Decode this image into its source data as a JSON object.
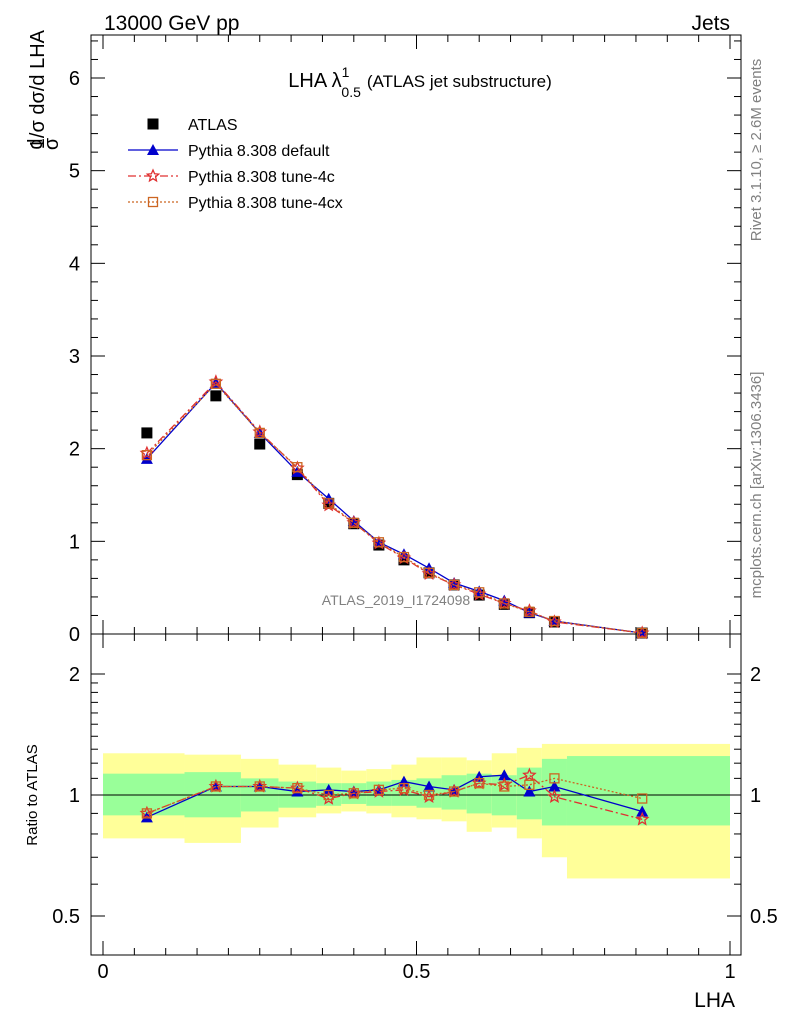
{
  "header": {
    "left": "13000 GeV pp",
    "right": "Jets"
  },
  "side": {
    "rivet": "Rivet 3.1.10, ≥ 2.6M events",
    "mcplots": "mcplots.cern.ch [arXiv:1306.3436]"
  },
  "watermark": "ATLAS_2019_I1724098",
  "chart_data": [
    {
      "type": "scatter",
      "title": "LHA λ¹₀.₅ (ATLAS jet substructure)",
      "title_main": "LHA λ",
      "title_sup": "1",
      "title_sub": "0.5",
      "title_rest": "(ATLAS jet substructure)",
      "ylabel": "1/σ dσ/d LHA",
      "xlim": [
        0,
        1
      ],
      "ylim": [
        0,
        6.5
      ],
      "yticks": [
        "0",
        "1",
        "2",
        "3",
        "4",
        "5",
        "6"
      ],
      "legend": {
        "placement": "top-left",
        "entries": [
          "ATLAS",
          "Pythia 8.308 default",
          "Pythia 8.308 tune-4c",
          "Pythia 8.308 tune-4cx"
        ]
      },
      "x": [
        0.07,
        0.18,
        0.25,
        0.31,
        0.36,
        0.4,
        0.44,
        0.48,
        0.52,
        0.56,
        0.6,
        0.64,
        0.68,
        0.72,
        0.86
      ],
      "series": [
        {
          "name": "ATLAS",
          "color": "#000000",
          "marker": "square",
          "values": [
            2.17,
            2.57,
            2.05,
            1.72,
            1.41,
            1.19,
            0.96,
            0.8,
            0.66,
            0.53,
            0.42,
            0.32,
            0.23,
            0.13,
            0.01
          ]
        },
        {
          "name": "Pythia 8.308 default",
          "color": "#0000cc",
          "marker": "triangle",
          "values": [
            1.89,
            2.71,
            2.17,
            1.75,
            1.46,
            1.22,
            0.99,
            0.86,
            0.71,
            0.55,
            0.46,
            0.36,
            0.23,
            0.14,
            0.01
          ]
        },
        {
          "name": "Pythia 8.308 tune-4c",
          "color": "#e03030",
          "marker": "star",
          "values": [
            1.95,
            2.72,
            2.18,
            1.79,
            1.39,
            1.2,
            0.98,
            0.82,
            0.65,
            0.53,
            0.43,
            0.33,
            0.25,
            0.13,
            0.01
          ]
        },
        {
          "name": "Pythia 8.308 tune-4cx",
          "color": "#cc6622",
          "marker": "open-square",
          "values": [
            1.93,
            2.7,
            2.17,
            1.8,
            1.41,
            1.2,
            0.99,
            0.83,
            0.66,
            0.53,
            0.45,
            0.33,
            0.24,
            0.14,
            0.01
          ]
        }
      ]
    },
    {
      "type": "scatter",
      "ylabel": "Ratio to ATLAS",
      "xlabel": "LHA",
      "xlim": [
        0,
        1
      ],
      "ylim": [
        0.4,
        2.3
      ],
      "log_y": true,
      "xticks": [
        "0",
        "0.5",
        "1"
      ],
      "yticks": [
        "0.5",
        "1",
        "2"
      ],
      "x": [
        0.07,
        0.18,
        0.25,
        0.31,
        0.36,
        0.4,
        0.44,
        0.48,
        0.52,
        0.56,
        0.6,
        0.64,
        0.68,
        0.72,
        0.86
      ],
      "bins": [
        {
          "lo": 0.0,
          "hi": 0.13,
          "in": [
            0.89,
            1.13
          ],
          "out": [
            0.78,
            1.27
          ]
        },
        {
          "lo": 0.13,
          "hi": 0.22,
          "in": [
            0.88,
            1.14
          ],
          "out": [
            0.76,
            1.26
          ]
        },
        {
          "lo": 0.22,
          "hi": 0.28,
          "in": [
            0.91,
            1.1
          ],
          "out": [
            0.83,
            1.23
          ]
        },
        {
          "lo": 0.28,
          "hi": 0.34,
          "in": [
            0.93,
            1.08
          ],
          "out": [
            0.88,
            1.19
          ]
        },
        {
          "lo": 0.34,
          "hi": 0.38,
          "in": [
            0.94,
            1.07
          ],
          "out": [
            0.9,
            1.17
          ]
        },
        {
          "lo": 0.38,
          "hi": 0.42,
          "in": [
            0.95,
            1.07
          ],
          "out": [
            0.91,
            1.15
          ]
        },
        {
          "lo": 0.42,
          "hi": 0.46,
          "in": [
            0.94,
            1.08
          ],
          "out": [
            0.9,
            1.16
          ]
        },
        {
          "lo": 0.46,
          "hi": 0.5,
          "in": [
            0.94,
            1.09
          ],
          "out": [
            0.88,
            1.19
          ]
        },
        {
          "lo": 0.5,
          "hi": 0.54,
          "in": [
            0.93,
            1.1
          ],
          "out": [
            0.87,
            1.24
          ]
        },
        {
          "lo": 0.54,
          "hi": 0.58,
          "in": [
            0.92,
            1.12
          ],
          "out": [
            0.86,
            1.24
          ]
        },
        {
          "lo": 0.58,
          "hi": 0.62,
          "in": [
            0.9,
            1.13
          ],
          "out": [
            0.81,
            1.22
          ]
        },
        {
          "lo": 0.62,
          "hi": 0.66,
          "in": [
            0.89,
            1.12
          ],
          "out": [
            0.83,
            1.27
          ]
        },
        {
          "lo": 0.66,
          "hi": 0.7,
          "in": [
            0.87,
            1.17
          ],
          "out": [
            0.78,
            1.31
          ]
        },
        {
          "lo": 0.7,
          "hi": 0.74,
          "in": [
            0.84,
            1.23
          ],
          "out": [
            0.7,
            1.34
          ]
        },
        {
          "lo": 0.74,
          "hi": 1.0,
          "in": [
            0.84,
            1.25
          ],
          "out": [
            0.62,
            1.34
          ]
        }
      ],
      "series": [
        {
          "name": "Pythia 8.308 default",
          "color": "#0000cc",
          "marker": "triangle",
          "values": [
            0.88,
            1.05,
            1.05,
            1.02,
            1.03,
            1.02,
            1.03,
            1.08,
            1.05,
            1.03,
            1.11,
            1.12,
            1.02,
            1.05,
            0.91
          ]
        },
        {
          "name": "Pythia 8.308 tune-4c",
          "color": "#e03030",
          "marker": "star",
          "values": [
            0.9,
            1.05,
            1.05,
            1.04,
            0.98,
            1.01,
            1.02,
            1.03,
            0.99,
            1.02,
            1.07,
            1.06,
            1.12,
            0.99,
            0.87
          ]
        },
        {
          "name": "Pythia 8.308 tune-4cx",
          "color": "#cc6622",
          "marker": "open-square",
          "values": [
            0.9,
            1.05,
            1.05,
            1.04,
            1.0,
            1.01,
            1.03,
            1.04,
            1.0,
            1.02,
            1.07,
            1.05,
            1.06,
            1.1,
            0.98
          ]
        }
      ]
    }
  ]
}
